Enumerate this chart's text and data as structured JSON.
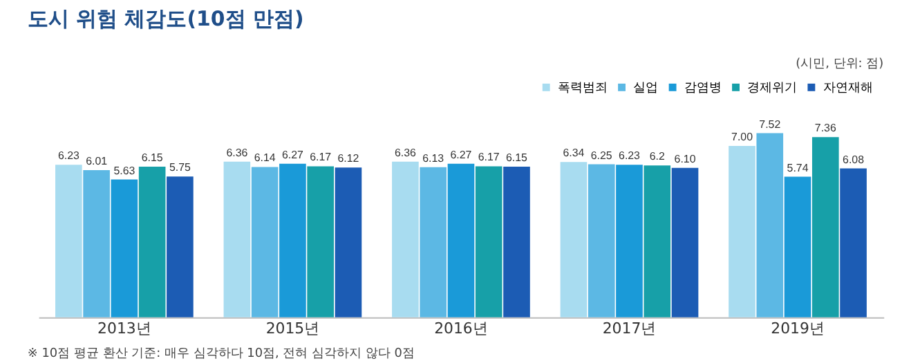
{
  "chart_data": {
    "type": "bar",
    "title": "도시 위험 체감도(10점 만점)",
    "subtitle": "(시민, 단위: 점)",
    "categories": [
      "2013년",
      "2015년",
      "2016년",
      "2017년",
      "2019년"
    ],
    "series": [
      {
        "name": "폭력범죄",
        "color": "#a8dcf0",
        "values": [
          6.23,
          6.36,
          6.36,
          6.34,
          7.0
        ],
        "value_labels": [
          "6.23",
          "6.36",
          "6.36",
          "6.34",
          "7.00"
        ]
      },
      {
        "name": "실업",
        "color": "#5cb8e4",
        "values": [
          6.01,
          6.14,
          6.13,
          6.25,
          7.52
        ],
        "value_labels": [
          "6.01",
          "6.14",
          "6.13",
          "6.25",
          "7.52"
        ]
      },
      {
        "name": "감염병",
        "color": "#1a9ad8",
        "values": [
          5.63,
          6.27,
          6.27,
          6.23,
          5.74
        ],
        "value_labels": [
          "5.63",
          "6.27",
          "6.27",
          "6.23",
          "5.74"
        ]
      },
      {
        "name": "경제위기",
        "color": "#17a0a8",
        "values": [
          6.15,
          6.17,
          6.17,
          6.2,
          7.36
        ],
        "value_labels": [
          "6.15",
          "6.17",
          "6.17",
          "6.2",
          "7.36"
        ]
      },
      {
        "name": "자연재해",
        "color": "#1c5cb4",
        "values": [
          5.75,
          6.12,
          6.15,
          6.1,
          6.08
        ],
        "value_labels": [
          "5.75",
          "6.12",
          "6.15",
          "6.10",
          "6.08"
        ]
      }
    ],
    "legend": "top right",
    "grid": false,
    "annotations": [
      "※ 10점 평균 환산 기준: 매우 심각하다 10점, 전혀 심각하지 않다 0점"
    ]
  }
}
